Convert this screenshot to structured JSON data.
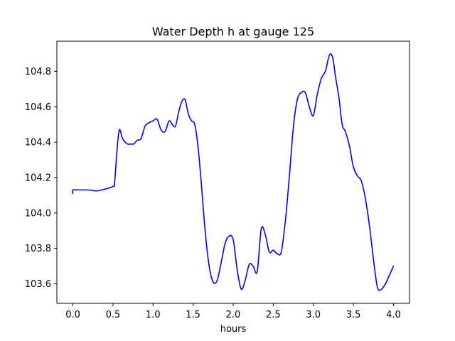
{
  "chart_data": {
    "type": "line",
    "title": "Water Depth h at gauge 125",
    "xlabel": "hours",
    "ylabel": "",
    "xlim": [
      -0.2,
      4.2
    ],
    "ylim": [
      103.49,
      104.97
    ],
    "grid": false,
    "xticks": [
      0.0,
      0.5,
      1.0,
      1.5,
      2.0,
      2.5,
      3.0,
      3.5,
      4.0
    ],
    "xtick_labels": [
      "0.0",
      "0.5",
      "1.0",
      "1.5",
      "2.0",
      "2.5",
      "3.0",
      "3.5",
      "4.0"
    ],
    "yticks": [
      103.6,
      103.8,
      104.0,
      104.2,
      104.4,
      104.6,
      104.8
    ],
    "ytick_labels": [
      "103.6",
      "103.8",
      "104.0",
      "104.2",
      "104.4",
      "104.6",
      "104.8"
    ],
    "series": [
      {
        "color": "#0000ff",
        "x": [
          0.0,
          0.0,
          0.1,
          0.2,
          0.3,
          0.4,
          0.5,
          0.52,
          0.55,
          0.58,
          0.62,
          0.68,
          0.72,
          0.76,
          0.8,
          0.85,
          0.9,
          0.95,
          1.0,
          1.05,
          1.1,
          1.15,
          1.2,
          1.24,
          1.28,
          1.32,
          1.36,
          1.4,
          1.44,
          1.48,
          1.52,
          1.56,
          1.6,
          1.65,
          1.7,
          1.75,
          1.8,
          1.85,
          1.9,
          1.95,
          2.0,
          2.05,
          2.1,
          2.15,
          2.2,
          2.25,
          2.3,
          2.35,
          2.4,
          2.45,
          2.5,
          2.55,
          2.6,
          2.65,
          2.7,
          2.75,
          2.8,
          2.85,
          2.9,
          2.95,
          3.0,
          3.05,
          3.1,
          3.15,
          3.2,
          3.24,
          3.28,
          3.32,
          3.36,
          3.4,
          3.45,
          3.5,
          3.55,
          3.6,
          3.65,
          3.7,
          3.75,
          3.8,
          3.85,
          3.9,
          3.95,
          4.0
        ],
        "y": [
          104.11,
          104.13,
          104.13,
          104.13,
          104.125,
          104.135,
          104.15,
          104.17,
          104.35,
          104.47,
          104.42,
          104.39,
          104.39,
          104.39,
          104.41,
          104.42,
          104.49,
          104.51,
          104.52,
          104.53,
          104.47,
          104.46,
          104.52,
          104.5,
          104.49,
          104.57,
          104.63,
          104.64,
          104.56,
          104.52,
          104.5,
          104.38,
          104.18,
          103.9,
          103.7,
          103.61,
          103.62,
          103.72,
          103.83,
          103.87,
          103.85,
          103.68,
          103.57,
          103.62,
          103.71,
          103.7,
          103.67,
          103.91,
          103.88,
          103.78,
          103.79,
          103.77,
          103.78,
          103.95,
          104.2,
          104.48,
          104.64,
          104.68,
          104.68,
          104.6,
          104.55,
          104.67,
          104.76,
          104.8,
          104.89,
          104.88,
          104.76,
          104.65,
          104.5,
          104.46,
          104.38,
          104.26,
          104.21,
          104.18,
          104.08,
          103.93,
          103.74,
          103.58,
          103.57,
          103.6,
          103.65,
          103.7
        ]
      }
    ]
  }
}
